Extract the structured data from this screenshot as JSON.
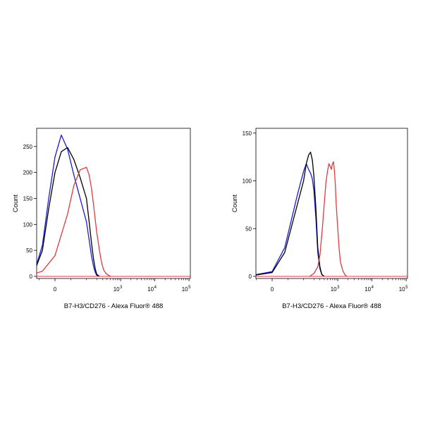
{
  "chart_data": [
    {
      "type": "line",
      "title": "",
      "xlabel": "B7-H3/CD276 - Alexa Fluor® 488",
      "ylabel": "Count",
      "x_scale": "biexponential",
      "x_ticks": [
        {
          "value": 0,
          "label": "0",
          "exp": ""
        },
        {
          "value": 1000,
          "label": "10",
          "exp": "3"
        },
        {
          "value": 10000,
          "label": "10",
          "exp": "4"
        },
        {
          "value": 100000,
          "label": "10",
          "exp": "5"
        }
      ],
      "ylim": [
        0,
        285
      ],
      "y_ticks": [
        0,
        50,
        100,
        150,
        200,
        250
      ],
      "series": [
        {
          "color": "#1a1adb",
          "x": [
            -180,
            -100,
            -60,
            -40,
            -20,
            0,
            20,
            40,
            60,
            80,
            100,
            120,
            140,
            160,
            180,
            200,
            240
          ],
          "y": [
            0,
            3,
            20,
            60,
            150,
            230,
            272,
            245,
            195,
            150,
            105,
            70,
            40,
            20,
            8,
            2,
            0
          ]
        },
        {
          "color": "#000000",
          "x": [
            -180,
            -100,
            -60,
            -40,
            -20,
            0,
            20,
            40,
            60,
            80,
            100,
            120,
            140,
            160,
            180,
            200,
            240
          ],
          "y": [
            0,
            3,
            18,
            50,
            130,
            200,
            240,
            248,
            225,
            190,
            150,
            105,
            65,
            35,
            15,
            4,
            0
          ]
        },
        {
          "color": "#e0393e",
          "x": [
            -160,
            -80,
            -40,
            0,
            40,
            60,
            80,
            100,
            120,
            140,
            160,
            180,
            200,
            240,
            280,
            320,
            380,
            440,
            520
          ],
          "y": [
            0,
            2,
            10,
            40,
            120,
            175,
            205,
            210,
            195,
            170,
            140,
            110,
            85,
            50,
            25,
            12,
            5,
            2,
            0
          ]
        }
      ]
    },
    {
      "type": "line",
      "title": "",
      "xlabel": "B7-H3/CD276 - Alexa Fluor® 488",
      "ylabel": "Count",
      "x_scale": "biexponential",
      "x_ticks": [
        {
          "value": 0,
          "label": "0",
          "exp": ""
        },
        {
          "value": 1000,
          "label": "10",
          "exp": "3"
        },
        {
          "value": 10000,
          "label": "10",
          "exp": "4"
        },
        {
          "value": 100000,
          "label": "10",
          "exp": "5"
        }
      ],
      "ylim": [
        0,
        155
      ],
      "y_ticks": [
        0,
        50,
        100,
        150
      ],
      "series": [
        {
          "color": "#1a1adb",
          "x": [
            -80,
            0,
            40,
            80,
            100,
            120,
            140,
            160,
            180,
            200,
            230,
            260,
            300,
            340,
            400
          ],
          "y": [
            0,
            5,
            30,
            85,
            110,
            118,
            112,
            108,
            102,
            90,
            60,
            25,
            8,
            2,
            0
          ]
        },
        {
          "color": "#000000",
          "x": [
            -80,
            0,
            40,
            80,
            100,
            120,
            140,
            160,
            180,
            200,
            230,
            260,
            300,
            340,
            400
          ],
          "y": [
            0,
            4,
            25,
            75,
            100,
            118,
            127,
            130,
            122,
            105,
            70,
            30,
            10,
            2,
            0
          ]
        },
        {
          "color": "#e0393e",
          "x": [
            150,
            200,
            260,
            300,
            350,
            400,
            450,
            500,
            550,
            600,
            650,
            700,
            750,
            800,
            850,
            900,
            1000,
            1100,
            1200,
            1400,
            1600,
            1800
          ],
          "y": [
            0,
            3,
            10,
            22,
            48,
            75,
            98,
            110,
            118,
            115,
            112,
            118,
            120,
            110,
            95,
            75,
            50,
            28,
            15,
            6,
            2,
            0
          ]
        }
      ]
    }
  ]
}
